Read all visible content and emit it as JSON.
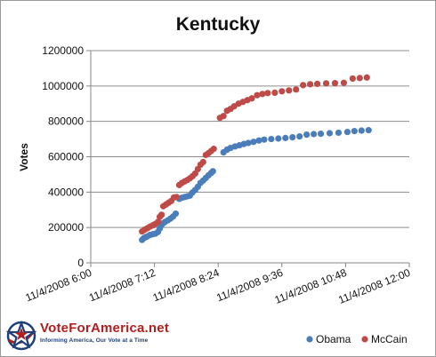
{
  "colors": {
    "obama": "#4a7ebb",
    "mccain": "#be4b48",
    "grid": "#8c8c8c",
    "axis": "#868686",
    "logo_red": "#b21e1e",
    "logo_blue": "#1f3f7a"
  },
  "logo": {
    "title": "VoteForAmerica.net",
    "tagline": "Informing America, Our Vote at a Time",
    "icon": "star-icon"
  },
  "chart_data": {
    "type": "scatter",
    "title": "Kentucky",
    "xlabel": "",
    "ylabel": "Votes",
    "x_ticks": [
      "11/4/2008 6:00",
      "11/4/2008 7:12",
      "11/4/2008 8:24",
      "11/4/2008 9:36",
      "11/4/2008 10:48",
      "11/4/2008 12:00"
    ],
    "xlim": [
      "11/4/2008 6:00",
      "11/4/2008 12:00"
    ],
    "y_ticks": [
      "0",
      "200000",
      "400000",
      "600000",
      "800000",
      "1000000",
      "1200000"
    ],
    "ylim": [
      0,
      1200000
    ],
    "grid": "horizontal",
    "legend": "bottom-right",
    "series": [
      {
        "name": "Obama",
        "color": "#4a7ebb",
        "points": [
          [
            "11/4/2008 6:58",
            130000
          ],
          [
            "11/4/2008 7:00",
            140000
          ],
          [
            "11/4/2008 7:02",
            145000
          ],
          [
            "11/4/2008 7:04",
            150000
          ],
          [
            "11/4/2008 7:07",
            158000
          ],
          [
            "11/4/2008 7:10",
            162000
          ],
          [
            "11/4/2008 7:13",
            165000
          ],
          [
            "11/4/2008 7:16",
            175000
          ],
          [
            "11/4/2008 7:18",
            195000
          ],
          [
            "11/4/2008 7:20",
            215000
          ],
          [
            "11/4/2008 7:22",
            225000
          ],
          [
            "11/4/2008 7:24",
            232000
          ],
          [
            "11/4/2008 7:27",
            240000
          ],
          [
            "11/4/2008 7:30",
            250000
          ],
          [
            "11/4/2008 7:33",
            262000
          ],
          [
            "11/4/2008 7:36",
            278000
          ],
          [
            "11/4/2008 7:40",
            362000
          ],
          [
            "11/4/2008 7:43",
            368000
          ],
          [
            "11/4/2008 7:46",
            372000
          ],
          [
            "11/4/2008 7:49",
            376000
          ],
          [
            "11/4/2008 7:52",
            380000
          ],
          [
            "11/4/2008 7:55",
            398000
          ],
          [
            "11/4/2008 7:58",
            412000
          ],
          [
            "11/4/2008 8:01",
            430000
          ],
          [
            "11/4/2008 8:04",
            452000
          ],
          [
            "11/4/2008 8:07",
            465000
          ],
          [
            "11/4/2008 8:10",
            480000
          ],
          [
            "11/4/2008 8:13",
            495000
          ],
          [
            "11/4/2008 8:16",
            508000
          ],
          [
            "11/4/2008 8:18",
            518000
          ],
          [
            "11/4/2008 8:30",
            625000
          ],
          [
            "11/4/2008 8:34",
            640000
          ],
          [
            "11/4/2008 8:38",
            650000
          ],
          [
            "11/4/2008 8:43",
            658000
          ],
          [
            "11/4/2008 8:48",
            665000
          ],
          [
            "11/4/2008 8:53",
            672000
          ],
          [
            "11/4/2008 8:58",
            678000
          ],
          [
            "11/4/2008 9:04",
            684000
          ],
          [
            "11/4/2008 9:10",
            692000
          ],
          [
            "11/4/2008 9:16",
            697000
          ],
          [
            "11/4/2008 9:24",
            700000
          ],
          [
            "11/4/2008 9:32",
            703000
          ],
          [
            "11/4/2008 9:40",
            706000
          ],
          [
            "11/4/2008 9:48",
            710000
          ],
          [
            "11/4/2008 9:56",
            715000
          ],
          [
            "11/4/2008 10:04",
            725000
          ],
          [
            "11/4/2008 10:12",
            728000
          ],
          [
            "11/4/2008 10:20",
            730000
          ],
          [
            "11/4/2008 10:30",
            733000
          ],
          [
            "11/4/2008 10:40",
            736000
          ],
          [
            "11/4/2008 10:50",
            740000
          ],
          [
            "11/4/2008 10:58",
            745000
          ],
          [
            "11/4/2008 11:06",
            748000
          ],
          [
            "11/4/2008 11:14",
            750000
          ]
        ]
      },
      {
        "name": "McCain",
        "color": "#be4b48",
        "points": [
          [
            "11/4/2008 6:58",
            178000
          ],
          [
            "11/4/2008 7:01",
            188000
          ],
          [
            "11/4/2008 7:04",
            196000
          ],
          [
            "11/4/2008 7:07",
            205000
          ],
          [
            "11/4/2008 7:10",
            212000
          ],
          [
            "11/4/2008 7:13",
            220000
          ],
          [
            "11/4/2008 7:16",
            232000
          ],
          [
            "11/4/2008 7:18",
            260000
          ],
          [
            "11/4/2008 7:20",
            272000
          ],
          [
            "11/4/2008 7:22",
            320000
          ],
          [
            "11/4/2008 7:25",
            330000
          ],
          [
            "11/4/2008 7:28",
            340000
          ],
          [
            "11/4/2008 7:31",
            350000
          ],
          [
            "11/4/2008 7:34",
            370000
          ],
          [
            "11/4/2008 7:37",
            372000
          ],
          [
            "11/4/2008 7:40",
            440000
          ],
          [
            "11/4/2008 7:43",
            452000
          ],
          [
            "11/4/2008 7:46",
            460000
          ],
          [
            "11/4/2008 7:49",
            468000
          ],
          [
            "11/4/2008 7:52",
            478000
          ],
          [
            "11/4/2008 7:55",
            490000
          ],
          [
            "11/4/2008 7:58",
            505000
          ],
          [
            "11/4/2008 8:01",
            530000
          ],
          [
            "11/4/2008 8:04",
            555000
          ],
          [
            "11/4/2008 8:07",
            570000
          ],
          [
            "11/4/2008 8:10",
            610000
          ],
          [
            "11/4/2008 8:13",
            620000
          ],
          [
            "11/4/2008 8:16",
            632000
          ],
          [
            "11/4/2008 8:19",
            645000
          ],
          [
            "11/4/2008 8:26",
            820000
          ],
          [
            "11/4/2008 8:30",
            830000
          ],
          [
            "11/4/2008 8:34",
            860000
          ],
          [
            "11/4/2008 8:38",
            870000
          ],
          [
            "11/4/2008 8:42",
            885000
          ],
          [
            "11/4/2008 8:47",
            900000
          ],
          [
            "11/4/2008 8:52",
            910000
          ],
          [
            "11/4/2008 8:57",
            920000
          ],
          [
            "11/4/2008 9:02",
            930000
          ],
          [
            "11/4/2008 9:08",
            948000
          ],
          [
            "11/4/2008 9:14",
            955000
          ],
          [
            "11/4/2008 9:20",
            960000
          ],
          [
            "11/4/2008 9:28",
            962000
          ],
          [
            "11/4/2008 9:36",
            970000
          ],
          [
            "11/4/2008 9:44",
            975000
          ],
          [
            "11/4/2008 9:52",
            980000
          ],
          [
            "11/4/2008 10:00",
            1005000
          ],
          [
            "11/4/2008 10:08",
            1010000
          ],
          [
            "11/4/2008 10:16",
            1012000
          ],
          [
            "11/4/2008 10:26",
            1015000
          ],
          [
            "11/4/2008 10:36",
            1016000
          ],
          [
            "11/4/2008 10:46",
            1018000
          ],
          [
            "11/4/2008 10:56",
            1042000
          ],
          [
            "11/4/2008 11:04",
            1045000
          ],
          [
            "11/4/2008 11:12",
            1048000
          ]
        ]
      }
    ]
  }
}
